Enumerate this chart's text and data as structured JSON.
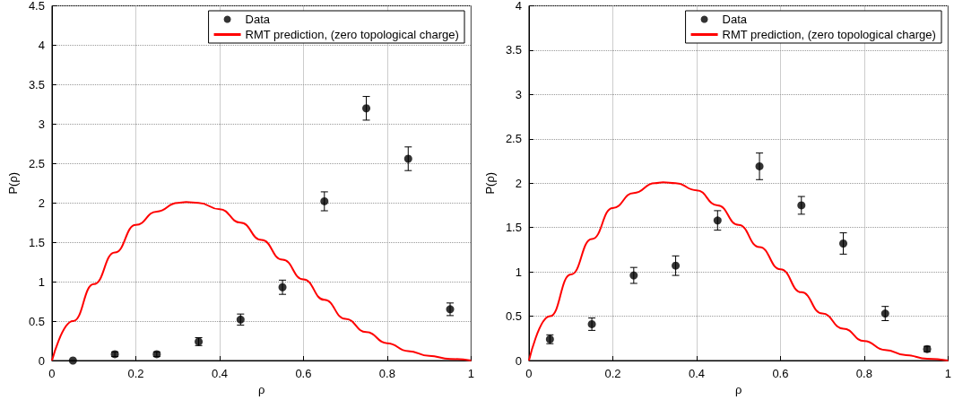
{
  "chart_data": [
    {
      "type": "scatter",
      "xlabel": "ρ",
      "ylabel": "P(ρ)",
      "xlim": [
        0,
        1
      ],
      "xticks": [
        0,
        0.2,
        0.4,
        0.6,
        0.8,
        1
      ],
      "ylim": [
        0,
        4.5
      ],
      "yticks": [
        0,
        0.5,
        1,
        1.5,
        2,
        2.5,
        3,
        3.5,
        4,
        4.5
      ],
      "grid": true,
      "legend": "top right",
      "series": [
        {
          "name": "Data",
          "type": "scatter",
          "marker": "circle",
          "color": "#000000",
          "x": [
            0.05,
            0.15,
            0.25,
            0.35,
            0.45,
            0.55,
            0.65,
            0.75,
            0.85,
            0.95
          ],
          "values": [
            0,
            0.08,
            0.08,
            0.24,
            0.52,
            0.93,
            2.02,
            3.2,
            2.56,
            0.65
          ],
          "errors": [
            null,
            0.03,
            0.03,
            0.05,
            0.07,
            0.09,
            0.12,
            0.15,
            0.15,
            0.08
          ]
        },
        {
          "name": "RMT prediction, (zero topological charge)",
          "type": "line",
          "marker": "none",
          "line_style": "solid",
          "color": "#ff0000",
          "x": [
            0,
            0.05,
            0.1,
            0.15,
            0.2,
            0.25,
            0.3,
            0.32,
            0.35,
            0.4,
            0.45,
            0.5,
            0.55,
            0.6,
            0.65,
            0.7,
            0.75,
            0.8,
            0.85,
            0.9,
            0.95,
            1
          ],
          "values": [
            0,
            0.5,
            0.97,
            1.37,
            1.72,
            1.89,
            2.0,
            2.01,
            2.0,
            1.92,
            1.75,
            1.53,
            1.28,
            1.03,
            0.77,
            0.53,
            0.36,
            0.22,
            0.12,
            0.06,
            0.02,
            0
          ]
        }
      ]
    },
    {
      "type": "scatter",
      "xlabel": "ρ",
      "ylabel": "P(ρ)",
      "xlim": [
        0,
        1
      ],
      "xticks": [
        0,
        0.2,
        0.4,
        0.6,
        0.8,
        1
      ],
      "ylim": [
        0,
        4
      ],
      "yticks": [
        0,
        0.5,
        1,
        1.5,
        2,
        2.5,
        3,
        3.5,
        4
      ],
      "grid": true,
      "legend": "top right",
      "series": [
        {
          "name": "Data",
          "type": "scatter",
          "marker": "circle",
          "color": "#000000",
          "x": [
            0.05,
            0.15,
            0.25,
            0.35,
            0.45,
            0.55,
            0.65,
            0.75,
            0.85,
            0.95
          ],
          "values": [
            0.24,
            0.41,
            0.96,
            1.07,
            1.58,
            2.19,
            1.75,
            1.32,
            0.53,
            0.13
          ],
          "errors": [
            0.05,
            0.07,
            0.09,
            0.11,
            0.11,
            0.15,
            0.1,
            0.12,
            0.08,
            0.03
          ]
        },
        {
          "name": "RMT prediction, (zero topological charge)",
          "type": "line",
          "marker": "none",
          "line_style": "solid",
          "color": "#ff0000",
          "x": [
            0,
            0.05,
            0.1,
            0.15,
            0.2,
            0.25,
            0.3,
            0.32,
            0.35,
            0.4,
            0.45,
            0.5,
            0.55,
            0.6,
            0.65,
            0.7,
            0.75,
            0.8,
            0.85,
            0.9,
            0.95,
            1
          ],
          "values": [
            0,
            0.5,
            0.97,
            1.37,
            1.72,
            1.89,
            2.0,
            2.01,
            2.0,
            1.92,
            1.75,
            1.53,
            1.28,
            1.03,
            0.77,
            0.53,
            0.36,
            0.22,
            0.12,
            0.06,
            0.02,
            0
          ]
        }
      ]
    }
  ]
}
